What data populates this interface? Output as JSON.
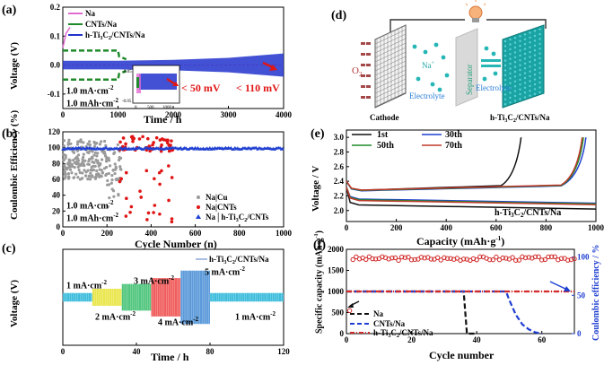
{
  "panel_labels": {
    "a": "(a)",
    "b": "(b)",
    "c": "(c)",
    "d": "(d)",
    "e": "(e)",
    "f": "(f)"
  },
  "chart_data": [
    {
      "id": "a",
      "type": "line",
      "xlabel": "Time / h",
      "ylabel": "Voltage (V)",
      "xlim": [
        0,
        4000
      ],
      "ylim": [
        -0.15,
        0.2
      ],
      "xticks": [
        0,
        1000,
        2000,
        3000,
        4000
      ],
      "yticks": [
        -0.1,
        0.0,
        0.1,
        0.2
      ],
      "ytick_labels": [
        "-0.1",
        "0.0",
        "0.1",
        "0.2"
      ],
      "series": [
        {
          "name": "Na",
          "color": "#e26ad2",
          "x": [
            0,
            60,
            130
          ],
          "y": [
            0.06,
            0.11,
            0.13
          ]
        },
        {
          "name": "CNTs/Na",
          "color": "#1f8a2a",
          "x": [
            0,
            1000,
            1020,
            1150
          ],
          "y": [
            0.05,
            0.05,
            0.03,
            0.02
          ]
        },
        {
          "name": "h-Ti3C2/CNTs/Na",
          "color": "#2233cc",
          "x": [
            0,
            1000,
            2000,
            3000,
            4000
          ],
          "y": [
            0.015,
            0.015,
            0.018,
            0.025,
            0.04
          ]
        }
      ],
      "annotations": [
        "1.0 mA·cm",
        "1.0 mAh·cm",
        "< 50 mV",
        "< 110 mV"
      ],
      "inset": {
        "xticks": [
          0,
          500,
          1000
        ],
        "yticks": [
          "0.05",
          "-0.05"
        ]
      }
    },
    {
      "id": "b",
      "type": "scatter",
      "xlabel": "Cycle Number (n)",
      "ylabel": "Coulombic Efficiency (%)",
      "xlim": [
        0,
        1000
      ],
      "ylim": [
        0,
        120
      ],
      "xticks": [
        0,
        200,
        400,
        600,
        800,
        1000
      ],
      "yticks": [
        0,
        20,
        40,
        60,
        80,
        100,
        120
      ],
      "series": [
        {
          "name": "Na|Cu",
          "color": "#9a9a9a",
          "marker": "circle"
        },
        {
          "name": "Na|CNTs",
          "color": "#e01515",
          "marker": "circle"
        },
        {
          "name": "Na|h-Ti3C2/CNTs",
          "color": "#1f3fd1",
          "marker": "triangle",
          "baseline": 99
        }
      ],
      "annotations": [
        "1.0 mA·cm",
        "1.0 mAh·cm"
      ]
    },
    {
      "id": "c",
      "type": "line",
      "xlabel": "Time / h",
      "ylabel": "Voltage (V)",
      "xlim": [
        0,
        120
      ],
      "xticks": [
        0,
        40,
        80,
        120
      ],
      "legend": "h-Ti3C2/CNTs/Na",
      "segments": [
        {
          "label": "1 mA·cm",
          "t": [
            0,
            16
          ],
          "amp": 0.08,
          "color": "#29b6d8"
        },
        {
          "label": "2 mA·cm",
          "t": [
            16,
            32
          ],
          "amp": 0.16,
          "color": "#e8e33a"
        },
        {
          "label": "3 mA·cm",
          "t": [
            32,
            48
          ],
          "amp": 0.25,
          "color": "#3ec070"
        },
        {
          "label": "4 mA·cm",
          "t": [
            48,
            64
          ],
          "amp": 0.36,
          "color": "#ee4c4c"
        },
        {
          "label": "5 mA·cm",
          "t": [
            64,
            80
          ],
          "amp": 0.5,
          "color": "#4a8fd6"
        },
        {
          "label": "1 mA·cm",
          "t": [
            80,
            120
          ],
          "amp": 0.08,
          "color": "#29b6d8"
        }
      ]
    },
    {
      "id": "e",
      "type": "line",
      "xlabel": "Capacity (mAh·g",
      "ylabel": "Voltage / V",
      "xlim": [
        0,
        1000
      ],
      "ylim": [
        1.85,
        3.1
      ],
      "xticks": [
        0,
        200,
        400,
        600,
        800,
        1000
      ],
      "yticks": [
        2.0,
        2.2,
        2.4,
        2.6,
        2.8,
        3.0
      ],
      "ytick_labels": [
        "2.0",
        "2.2",
        "2.4",
        "2.6",
        "2.8",
        "3.0"
      ],
      "series": [
        {
          "name": "1st",
          "color": "#111111",
          "charge_end": 700,
          "discharge_end": 1000
        },
        {
          "name": "30th",
          "color": "#1f3fd1",
          "charge_end": 960,
          "discharge_end": 1000
        },
        {
          "name": "50th",
          "color": "#1f8a2a",
          "charge_end": 950,
          "discharge_end": 1000
        },
        {
          "name": "70th",
          "color": "#c0392b",
          "charge_end": 945,
          "discharge_end": 1000
        }
      ],
      "annotation": "h-Ti3C2/CNTs/Na"
    },
    {
      "id": "f",
      "type": "line",
      "xlabel": "Cycle number",
      "ylabel": "Specific capacity (mAh·g",
      "y2label": "Coulombic efficiency / %",
      "xlim": [
        0,
        70
      ],
      "ylim": [
        0,
        2000
      ],
      "y2lim": [
        0,
        110
      ],
      "xticks": [
        0,
        20,
        40,
        60
      ],
      "yticks": [
        0,
        500,
        1000,
        1500,
        2000
      ],
      "y2ticks": [
        0,
        50,
        100
      ],
      "series": [
        {
          "name": "Na",
          "color": "#111111",
          "style": "dash",
          "x": [
            0,
            36,
            37,
            40
          ],
          "y": [
            1000,
            1000,
            0,
            0
          ]
        },
        {
          "name": "CNTs/Na",
          "color": "#1f3fd1",
          "style": "dash",
          "x": [
            0,
            49,
            50,
            52,
            54,
            56,
            58,
            60
          ],
          "y": [
            1000,
            1000,
            800,
            450,
            220,
            100,
            30,
            0
          ]
        },
        {
          "name": "h-Ti3C2/CNTs/Na",
          "color": "#d12a2a",
          "style": "dash-dot",
          "x": [
            0,
            70
          ],
          "y": [
            1000,
            1000
          ]
        }
      ],
      "efficiency": {
        "color": "#d12a2a",
        "level": 98
      }
    }
  ],
  "schematic_d": {
    "labels": {
      "o2": "O",
      "na_plus": "Na",
      "electrolyte_left": "Electrolyte",
      "separator": "Separator",
      "electrolyte_right": "Electrolyte",
      "cathode": "Cathode",
      "anode": "h-Ti3C2/CNTs/Na"
    },
    "colors": {
      "anode": "#1aa3a3",
      "separator": "#d9d9d9",
      "ions": "#26b6b6"
    }
  }
}
